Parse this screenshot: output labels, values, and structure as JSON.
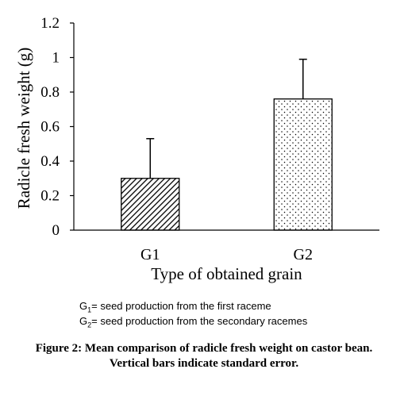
{
  "chart_data": {
    "type": "bar",
    "categories": [
      "G1",
      "G2"
    ],
    "values": [
      0.3,
      0.76
    ],
    "errors": [
      0.23,
      0.23
    ],
    "bar_patterns": [
      "diagonal-hatch",
      "dots"
    ],
    "xlabel": "Type of obtained grain",
    "ylabel": "Radicle fresh weight (g)",
    "ylim": [
      0,
      1.2
    ],
    "yticks": [
      "0",
      "0.2",
      "0.4",
      "0.6",
      "0.8",
      "1",
      "1.2"
    ],
    "grid": false
  },
  "legend": {
    "g1": {
      "prefix": "G",
      "sub": "1",
      "text": "= seed production from the first raceme"
    },
    "g2": {
      "prefix": "G",
      "sub": "2",
      "text": "= seed production from the secondary racemes"
    }
  },
  "caption": {
    "line1": "Figure 2: Mean comparison of radicle fresh weight on castor bean.",
    "line2": "Vertical bars indicate standard error."
  }
}
